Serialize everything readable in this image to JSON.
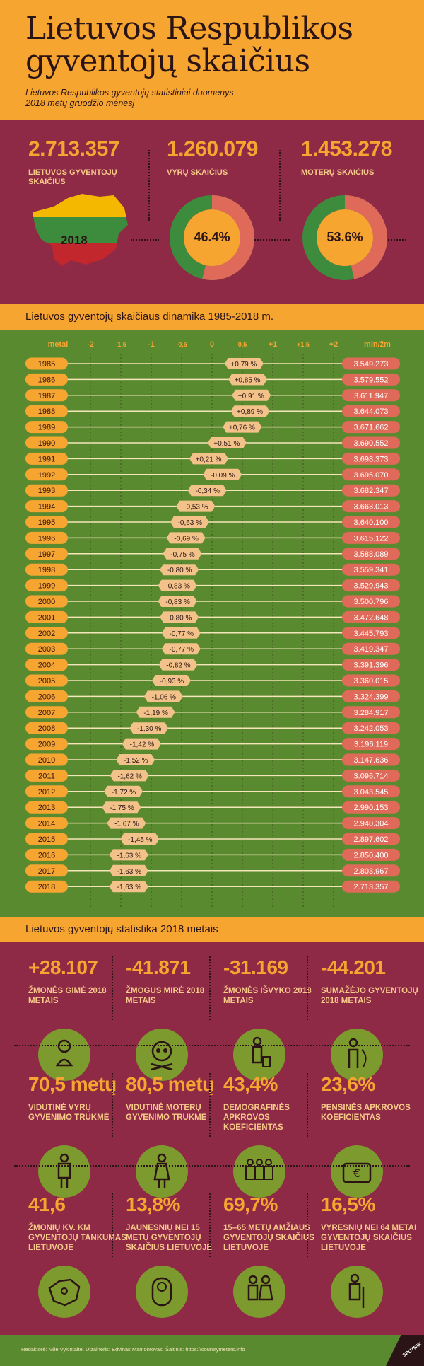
{
  "header": {
    "title_line1": "Lietuvos Respublikos",
    "title_line2": "gyventojų skaičius",
    "subtitle_line1": "Lietuvos Respublikos gyventojų statistiniai duomenys",
    "subtitle_line2": "2018 metų gruodžio mėnesį"
  },
  "summary": {
    "total_value": "2.713.357",
    "total_label_line1": "LIETUVOS GYVENTOJŲ",
    "total_label_line2": "SKAIČIUS",
    "map_year": "2018",
    "men_value": "1.260.079",
    "men_label": "VYRŲ SKAIČIUS",
    "men_pct": "46.4%",
    "men_fraction": 0.464,
    "women_value": "1.453.278",
    "women_label": "MOTERŲ SKAIČIUS",
    "women_pct": "53.6%",
    "women_fraction": 0.536
  },
  "colors": {
    "orange": "#f7a531",
    "maroon": "#8e2a45",
    "green": "#5a8a2f",
    "pink": "#e06a5a",
    "dark": "#2b1416",
    "flag_yellow": "#f5b800",
    "flag_green": "#3d8b3d",
    "flag_red": "#c1272d"
  },
  "dynamics_title": "Lietuvos gyventojų skaičiaus dinamika 1985-2018 m.",
  "chart_data": {
    "type": "bar",
    "xlabel": "metai",
    "unit_label": "mln/žm",
    "xlim": [
      -2,
      2
    ],
    "x_ticks": [
      "-2",
      "-1,5",
      "-1",
      "-0,5",
      "0",
      "0,5",
      "+1",
      "+1,5",
      "+2"
    ],
    "rows": [
      {
        "year": "1985",
        "change": 0.79,
        "label": "+0,79 %",
        "population": "3.549.273"
      },
      {
        "year": "1986",
        "change": 0.85,
        "label": "+0,85 %",
        "population": "3.579.552"
      },
      {
        "year": "1987",
        "change": 0.91,
        "label": "+0,91 %",
        "population": "3.611.947"
      },
      {
        "year": "1988",
        "change": 0.89,
        "label": "+0,89 %",
        "population": "3.644.073"
      },
      {
        "year": "1989",
        "change": 0.76,
        "label": "+0,76 %",
        "population": "3.671.662"
      },
      {
        "year": "1990",
        "change": 0.51,
        "label": "+0,51 %",
        "population": "3.690.552"
      },
      {
        "year": "1991",
        "change": 0.21,
        "label": "+0,21 %",
        "population": "3.698.373"
      },
      {
        "year": "1992",
        "change": -0.09,
        "label": "-0,09 %",
        "population": "3.695.070"
      },
      {
        "year": "1993",
        "change": -0.34,
        "label": "-0,34 %",
        "population": "3.682.347"
      },
      {
        "year": "1994",
        "change": -0.53,
        "label": "-0,53 %",
        "population": "3.663.013"
      },
      {
        "year": "1995",
        "change": -0.63,
        "label": "-0,63 %",
        "population": "3.640.100"
      },
      {
        "year": "1996",
        "change": -0.69,
        "label": "-0,69 %",
        "population": "3.615.122"
      },
      {
        "year": "1997",
        "change": -0.75,
        "label": "-0,75 %",
        "population": "3.588.089"
      },
      {
        "year": "1998",
        "change": -0.8,
        "label": "-0,80 %",
        "population": "3.559.341"
      },
      {
        "year": "1999",
        "change": -0.83,
        "label": "-0,83 %",
        "population": "3.529.943"
      },
      {
        "year": "2000",
        "change": -0.83,
        "label": "-0,83 %",
        "population": "3.500.796"
      },
      {
        "year": "2001",
        "change": -0.8,
        "label": "-0,80 %",
        "population": "3.472.648"
      },
      {
        "year": "2002",
        "change": -0.77,
        "label": "-0,77 %",
        "population": "3.445.793"
      },
      {
        "year": "2003",
        "change": -0.77,
        "label": "-0,77 %",
        "population": "3.419.347"
      },
      {
        "year": "2004",
        "change": -0.82,
        "label": "-0,82 %",
        "population": "3.391.396"
      },
      {
        "year": "2005",
        "change": -0.93,
        "label": "-0,93 %",
        "population": "3.360.015"
      },
      {
        "year": "2006",
        "change": -1.06,
        "label": "-1,06 %",
        "population": "3.324.399"
      },
      {
        "year": "2007",
        "change": -1.19,
        "label": "-1,19 %",
        "population": "3.284.917"
      },
      {
        "year": "2008",
        "change": -1.3,
        "label": "-1,30 %",
        "population": "3.242.053"
      },
      {
        "year": "2009",
        "change": -1.42,
        "label": "-1,42 %",
        "population": "3.196.119"
      },
      {
        "year": "2010",
        "change": -1.52,
        "label": "-1,52 %",
        "population": "3.147.636"
      },
      {
        "year": "2011",
        "change": -1.62,
        "label": "-1,62 %",
        "population": "3.096.714"
      },
      {
        "year": "2012",
        "change": -1.72,
        "label": "-1,72 %",
        "population": "3.043.545"
      },
      {
        "year": "2013",
        "change": -1.75,
        "label": "-1,75 %",
        "population": "2.990.153"
      },
      {
        "year": "2014",
        "change": -1.67,
        "label": "-1,67 %",
        "population": "2.940.304"
      },
      {
        "year": "2015",
        "change": -1.45,
        "label": "-1,45 %",
        "population": "2.897.602"
      },
      {
        "year": "2016",
        "change": -1.63,
        "label": "-1,63 %",
        "population": "2.850.400"
      },
      {
        "year": "2017",
        "change": -1.63,
        "label": "-1,63 %",
        "population": "2.803.967"
      },
      {
        "year": "2018",
        "change": -1.63,
        "label": "-1,63 %",
        "population": "2.713.357"
      }
    ]
  },
  "stats_title": "Lietuvos gyventojų statistika 2018 metais",
  "stats": [
    {
      "value": "+28.107",
      "label": "ŽMONĖS GIMĖ 2018 METAIS",
      "icon": "baby-icon"
    },
    {
      "value": "-41.871",
      "label": "ŽMOGUS MIRĖ 2018 METAIS",
      "icon": "skull-icon"
    },
    {
      "value": "-31.169",
      "label": "ŽMONĖS IŠVYKO 2018 METAIS",
      "icon": "traveler-icon"
    },
    {
      "value": "-44.201",
      "label": "SUMAŽĖJO GYVENTOJŲ 2018 METAIS",
      "icon": "person-decrease-icon"
    },
    {
      "value": "70,5 metų",
      "label": "VIDUTINĖ VYRŲ GYVENIMO TRUKMĖ",
      "icon": "man-icon"
    },
    {
      "value": "80,5 metų",
      "label": "VIDUTINĖ MOTERŲ GYVENIMO TRUKMĖ",
      "icon": "woman-icon"
    },
    {
      "value": "43,4%",
      "label": "DEMOGRAFINĖS APKROVOS KOEFICIENTAS",
      "icon": "group-icon"
    },
    {
      "value": "23,6%",
      "label": "PENSINĖS APKROVOS KOEFICIENTAS",
      "icon": "euro-wallet-icon"
    },
    {
      "value": "41,6",
      "label": "ŽMONIŲ KV. KM GYVENTOJŲ TANKUMAS LIETUVOJE",
      "icon": "map-people-icon"
    },
    {
      "value": "13,8%",
      "label": "JAUNESNIŲ NEI 15 METŲ GYVENTOJŲ SKAIČIUS LIETUVOJE",
      "icon": "infant-icon"
    },
    {
      "value": "69,7%",
      "label": "15–65 METŲ AMŽIAUS GYVENTOJŲ SKAIČIUS LIETUVOJE",
      "icon": "adults-icon"
    },
    {
      "value": "16,5%",
      "label": "VYRESNIŲ NEI 64 METAI GYVENTOJŲ SKAIČIUS LIETUVOJE",
      "icon": "elderly-icon"
    }
  ],
  "footer": {
    "credits": "Redaktorė: Milė Vykintaitė.   Dizaineris: Edvinas Mamontovas.   Šaltinis: https://countrymeters.info",
    "logo": "SPUTNIK"
  }
}
